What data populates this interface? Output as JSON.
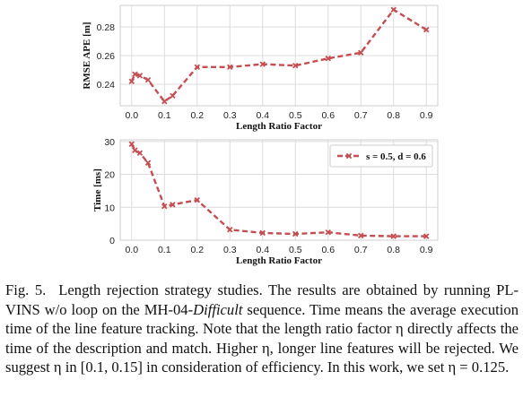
{
  "chart_data": [
    {
      "type": "line",
      "xlabel": "Length Ratio Factor",
      "ylabel": "RMSE APE [m]",
      "x": [
        0.0,
        0.01,
        0.025,
        0.05,
        0.1,
        0.125,
        0.2,
        0.3,
        0.4,
        0.5,
        0.6,
        0.7,
        0.8,
        0.9
      ],
      "series": [
        {
          "values": [
            0.242,
            0.247,
            0.246,
            0.243,
            0.228,
            0.232,
            0.252,
            0.252,
            0.254,
            0.253,
            0.258,
            0.262,
            0.292,
            0.278
          ]
        }
      ],
      "xticks": [
        "0.0",
        "0.1",
        "0.2",
        "0.3",
        "0.4",
        "0.5",
        "0.6",
        "0.7",
        "0.8",
        "0.9"
      ],
      "yticks": [
        "0.24",
        "0.26",
        "0.28"
      ],
      "xlim": [
        -0.035,
        0.935
      ],
      "ylim": [
        0.225,
        0.295
      ],
      "grid": true,
      "legend": null,
      "color": "#c44e52"
    },
    {
      "type": "line",
      "xlabel": "Length Ratio Factor",
      "ylabel": "Time [ms]",
      "x": [
        0.0,
        0.01,
        0.025,
        0.05,
        0.1,
        0.125,
        0.2,
        0.3,
        0.4,
        0.5,
        0.6,
        0.7,
        0.8,
        0.9
      ],
      "series": [
        {
          "name": "s = 0.5, d = 0.6",
          "values": [
            29.2,
            27.3,
            26.5,
            23.5,
            10.3,
            10.8,
            12.2,
            3.2,
            2.2,
            1.9,
            2.4,
            1.4,
            1.2,
            1.2
          ]
        }
      ],
      "xticks": [
        "0.0",
        "0.1",
        "0.2",
        "0.3",
        "0.4",
        "0.5",
        "0.6",
        "0.7",
        "0.8",
        "0.9"
      ],
      "yticks": [
        "0",
        "10",
        "20",
        "30"
      ],
      "xlim": [
        -0.035,
        0.935
      ],
      "ylim": [
        0,
        30.5
      ],
      "grid": true,
      "legend": "top-right",
      "color": "#c44e52"
    }
  ],
  "caption": {
    "fig_label": "Fig. 5.",
    "text_1": "Length rejection strategy studies. The results are obtained by running PL-VINS w/o loop on the MH-04-",
    "text_italic": "Difficult",
    "text_2": " sequence. Time means the average execution time of the line feature tracking. Note that the length ratio factor η directly affects the time of the description and match. Higher η, longer line features will be rejected. We suggest η in [0.1, 0.15] in consideration of efficiency. In this work, we set η = 0.125."
  }
}
